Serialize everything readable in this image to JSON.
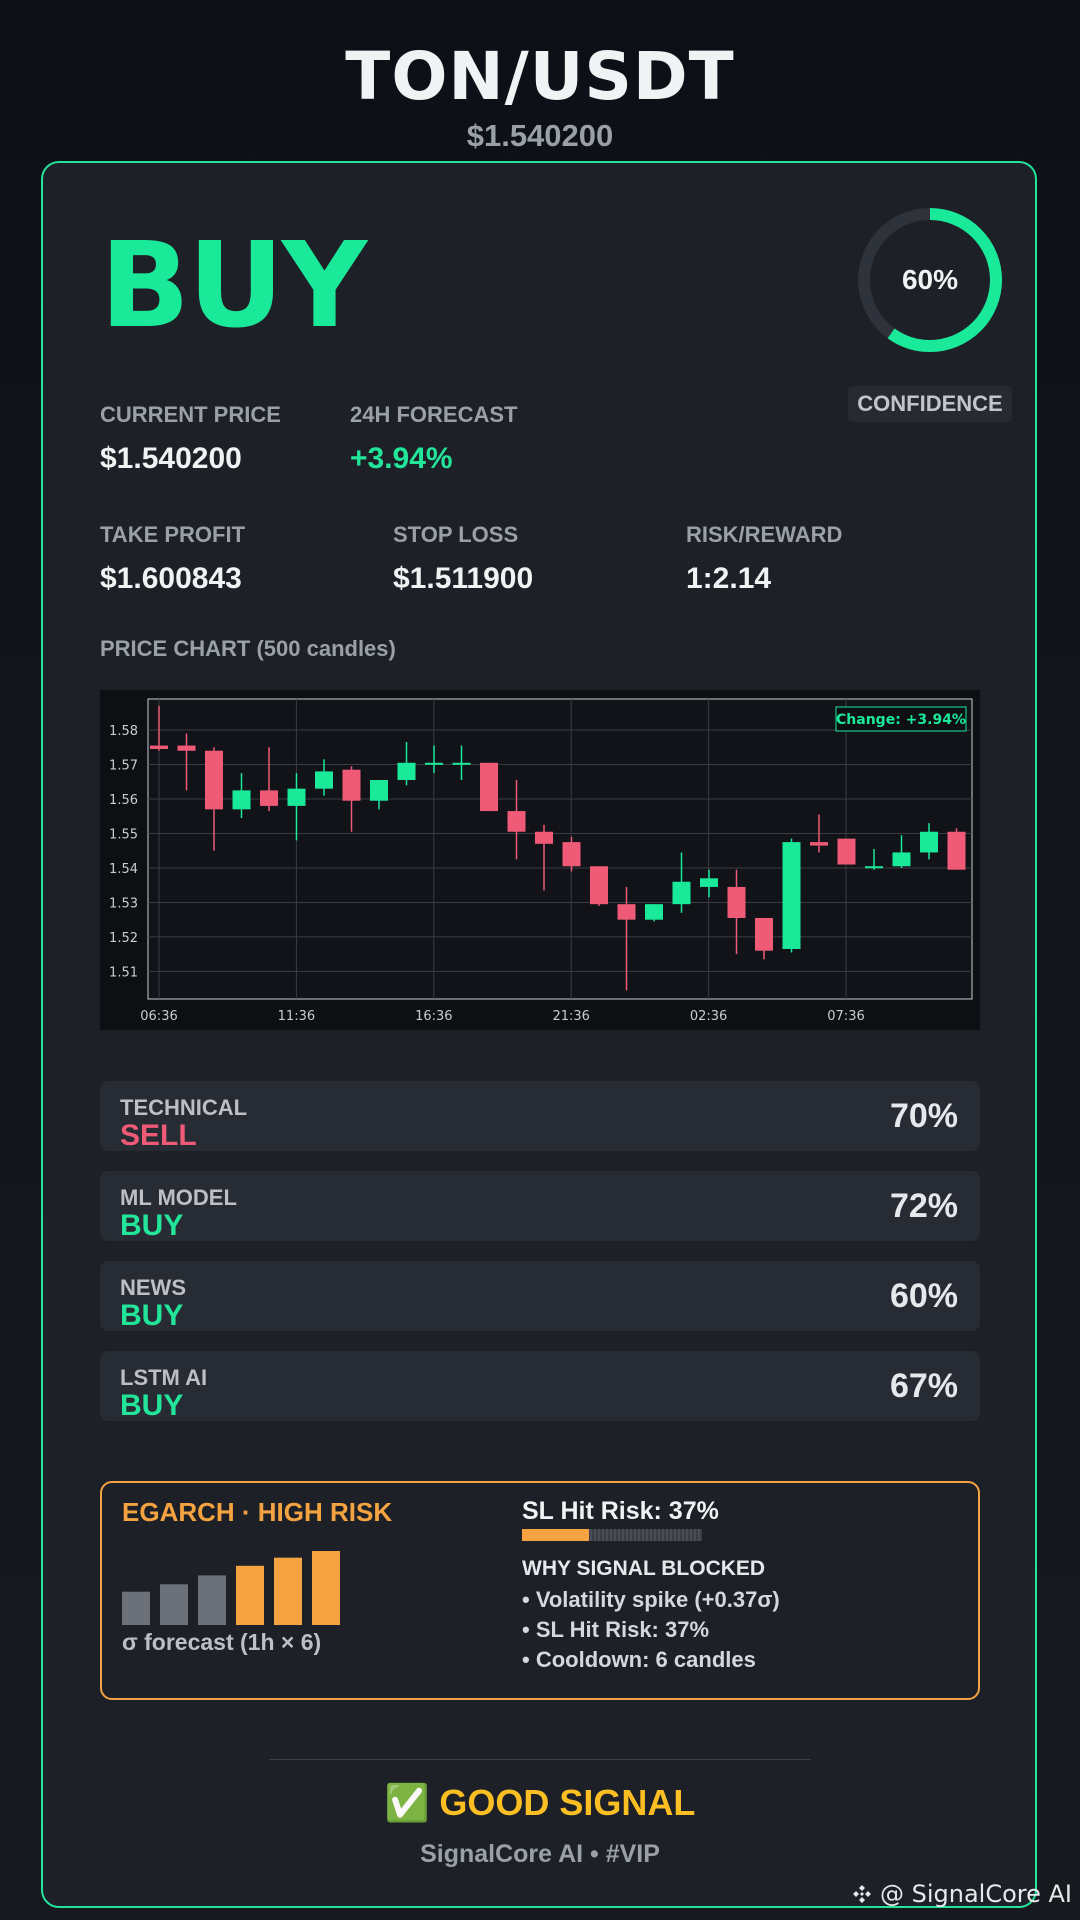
{
  "header": {
    "pair": "TON/USDT",
    "price": "$1.540200"
  },
  "signal": {
    "label": "BUY",
    "color": "#1be99a"
  },
  "confidence": {
    "value": 0.6,
    "display": "60%",
    "label": "CONFIDENCE"
  },
  "metrics": {
    "current_price": {
      "label": "CURRENT PRICE",
      "value": "$1.540200"
    },
    "forecast": {
      "label": "24H FORECAST",
      "value": "+3.94%"
    },
    "take_profit": {
      "label": "TAKE PROFIT",
      "value": "$1.600843"
    },
    "stop_loss": {
      "label": "STOP LOSS",
      "value": "$1.511900"
    },
    "risk_reward": {
      "label": "RISK/REWARD",
      "value": "1:2.14"
    }
  },
  "chart": {
    "title": "PRICE CHART (500 candles)",
    "change_label": "Change: +3.94%",
    "colors": {
      "up": "#1be99a",
      "down": "#ef5a76",
      "bg": "#0d0f13"
    },
    "chart_data": {
      "type": "candlestick",
      "y_ticks": [
        "1.58",
        "1.57",
        "1.56",
        "1.55",
        "1.54",
        "1.53",
        "1.52",
        "1.51"
      ],
      "ylim": [
        1.502,
        1.589
      ],
      "x_ticks": [
        "06:36",
        "11:36",
        "16:36",
        "21:36",
        "02:36",
        "07:36"
      ],
      "grid": true,
      "candles": [
        {
          "o": 1.5755,
          "h": 1.587,
          "l": 1.574,
          "c": 1.5745
        },
        {
          "o": 1.5755,
          "h": 1.579,
          "l": 1.5625,
          "c": 1.574
        },
        {
          "o": 1.574,
          "h": 1.575,
          "l": 1.545,
          "c": 1.557
        },
        {
          "o": 1.557,
          "h": 1.5675,
          "l": 1.5545,
          "c": 1.5625
        },
        {
          "o": 1.5625,
          "h": 1.575,
          "l": 1.5565,
          "c": 1.558
        },
        {
          "o": 1.558,
          "h": 1.5675,
          "l": 1.548,
          "c": 1.563
        },
        {
          "o": 1.563,
          "h": 1.5715,
          "l": 1.561,
          "c": 1.568
        },
        {
          "o": 1.5685,
          "h": 1.5695,
          "l": 1.5505,
          "c": 1.5595
        },
        {
          "o": 1.5595,
          "h": 1.5655,
          "l": 1.557,
          "c": 1.5655
        },
        {
          "o": 1.5655,
          "h": 1.5765,
          "l": 1.564,
          "c": 1.5705
        },
        {
          "o": 1.5705,
          "h": 1.5755,
          "l": 1.5675,
          "c": 1.5705
        },
        {
          "o": 1.5705,
          "h": 1.5755,
          "l": 1.5655,
          "c": 1.5705
        },
        {
          "o": 1.5705,
          "h": 1.5705,
          "l": 1.5565,
          "c": 1.5565
        },
        {
          "o": 1.5565,
          "h": 1.5655,
          "l": 1.5425,
          "c": 1.5505
        },
        {
          "o": 1.5505,
          "h": 1.5525,
          "l": 1.5335,
          "c": 1.547
        },
        {
          "o": 1.5475,
          "h": 1.549,
          "l": 1.539,
          "c": 1.5405
        },
        {
          "o": 1.5405,
          "h": 1.5405,
          "l": 1.529,
          "c": 1.5295
        },
        {
          "o": 1.5295,
          "h": 1.5345,
          "l": 1.5045,
          "c": 1.525
        },
        {
          "o": 1.525,
          "h": 1.5295,
          "l": 1.5245,
          "c": 1.5295
        },
        {
          "o": 1.5295,
          "h": 1.5445,
          "l": 1.527,
          "c": 1.536
        },
        {
          "o": 1.5345,
          "h": 1.5395,
          "l": 1.5315,
          "c": 1.537
        },
        {
          "o": 1.5345,
          "h": 1.5395,
          "l": 1.515,
          "c": 1.5255
        },
        {
          "o": 1.5255,
          "h": 1.5255,
          "l": 1.5135,
          "c": 1.516
        },
        {
          "o": 1.5165,
          "h": 1.5485,
          "l": 1.5155,
          "c": 1.5475
        },
        {
          "o": 1.5475,
          "h": 1.5555,
          "l": 1.5445,
          "c": 1.5465
        },
        {
          "o": 1.5485,
          "h": 1.5485,
          "l": 1.541,
          "c": 1.541
        },
        {
          "o": 1.5405,
          "h": 1.5455,
          "l": 1.5395,
          "c": 1.5405
        },
        {
          "o": 1.5405,
          "h": 1.5495,
          "l": 1.54,
          "c": 1.5445
        },
        {
          "o": 1.5445,
          "h": 1.553,
          "l": 1.5425,
          "c": 1.5505
        },
        {
          "o": 1.5505,
          "h": 1.5515,
          "l": 1.5395,
          "c": 1.5395
        }
      ]
    }
  },
  "components": [
    {
      "name": "TECHNICAL",
      "signal": "SELL",
      "pct": "70%",
      "kind": "sell"
    },
    {
      "name": "ML MODEL",
      "signal": "BUY",
      "pct": "72%",
      "kind": "buy"
    },
    {
      "name": "NEWS",
      "signal": "BUY",
      "pct": "60%",
      "kind": "buy"
    },
    {
      "name": "LSTM AI",
      "signal": "BUY",
      "pct": "67%",
      "kind": "buy"
    }
  ],
  "risk": {
    "title": "EGARCH · HIGH RISK",
    "sigma_label": "σ forecast (1h × 6)",
    "sigma_bars": [
      0.45,
      0.55,
      0.67,
      0.8,
      0.91,
      1.0
    ],
    "bar_colors": [
      "#6b7079",
      "#6b7079",
      "#6b7079",
      "#f4a340",
      "#f4a340",
      "#f4a340"
    ],
    "sl_title": "SL Hit Risk: 37%",
    "sl_value": 0.37,
    "why_title": "WHY SIGNAL BLOCKED",
    "why_items": [
      "• Volatility spike (+0.37σ)",
      "• SL Hit Risk: 37%",
      "• Cooldown: 6 candles"
    ]
  },
  "footer": {
    "good_signal": "✅ GOOD SIGNAL",
    "brand": "SignalCore AI • #VIP",
    "watermark": "@ SignalCore AI"
  }
}
